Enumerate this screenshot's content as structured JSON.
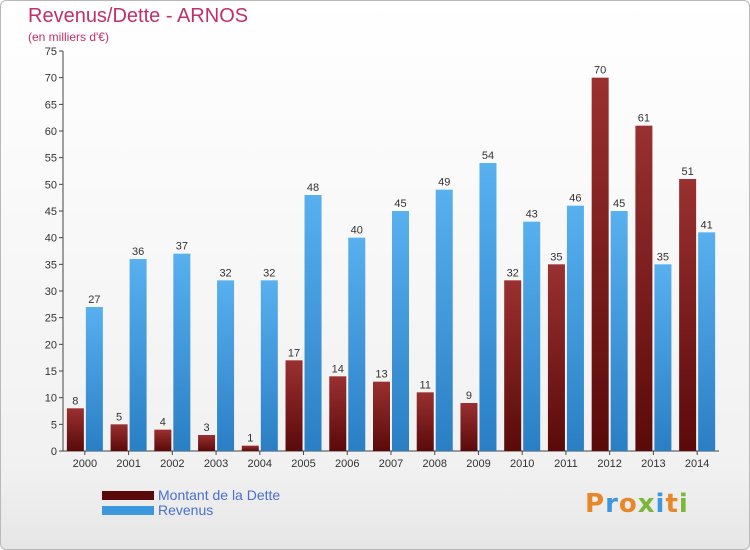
{
  "title": "Revenus/Dette - ARNOS",
  "subtitle": "(en milliers d'€)",
  "colors": {
    "dette": "#7a1a1a",
    "revenus": "#3d97dd",
    "title": "#c0306a",
    "legend_text": "#4a6fd0"
  },
  "legend": {
    "dette_label": "Montant de la Dette",
    "revenus_label": "Revenus"
  },
  "logo": {
    "text": "Proxiti"
  },
  "chart_data": {
    "type": "bar",
    "title": "Revenus/Dette - ARNOS",
    "subtitle": "(en milliers d'€)",
    "xlabel": "",
    "ylabel": "",
    "categories": [
      "2000",
      "2001",
      "2002",
      "2003",
      "2004",
      "2005",
      "2006",
      "2007",
      "2008",
      "2009",
      "2010",
      "2011",
      "2012",
      "2013",
      "2014"
    ],
    "series": [
      {
        "name": "Montant de la Dette",
        "values": [
          8,
          5,
          4,
          3,
          1,
          17,
          14,
          13,
          11,
          9,
          32,
          35,
          70,
          61,
          51
        ]
      },
      {
        "name": "Revenus",
        "values": [
          27,
          36,
          37,
          32,
          32,
          48,
          40,
          45,
          49,
          54,
          43,
          46,
          45,
          35,
          41
        ]
      }
    ],
    "ylim": [
      0,
      75
    ],
    "ytick_step": 5,
    "grid": false,
    "legend_position": "bottom-left"
  }
}
